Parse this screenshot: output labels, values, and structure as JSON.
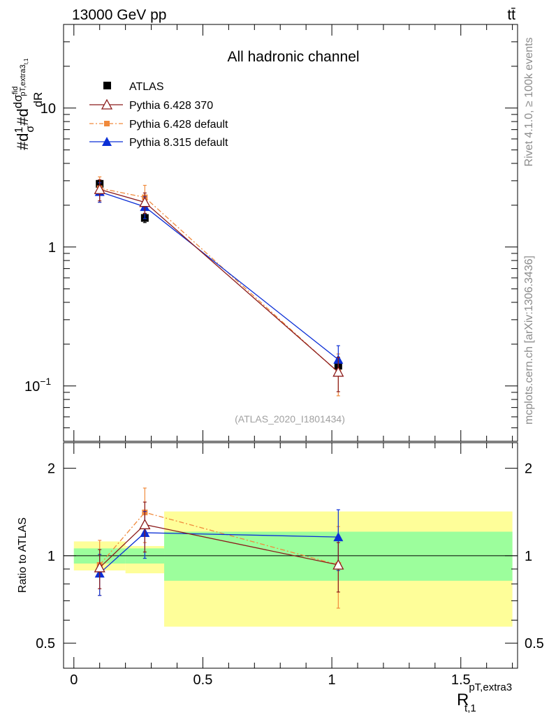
{
  "header": {
    "energy_label": "13000 GeV pp",
    "process_label": "tt̄"
  },
  "side_texts": {
    "rivet": "Rivet 4.1.0, ≥ 100k events",
    "mcplots": "mcplots.cern.ch [arXiv:1306.3436]"
  },
  "colors": {
    "atlas": "#000000",
    "py6_370": "#8b1a1a",
    "py6_default": "#f08a3c",
    "py8_default": "#0b2fd6",
    "band_inner": "#9cfe9c",
    "band_outer": "#fefe99"
  },
  "chart_data": [
    {
      "panel": "main",
      "type": "line",
      "title": "All hadronic channel",
      "reference_id": "(ATLAS_2020_I1801434)",
      "yscale": "log",
      "ylim": [
        0.04,
        40
      ],
      "xlim": [
        -0.04,
        1.72
      ],
      "ylabel_main": "#d",
      "ylabel_frac": "1/σ",
      "ylabel_deriv": "dσ^fid/dR^pT,extra3_t,1",
      "y_major_ticks": [
        {
          "value": 0.1,
          "label": "10",
          "exp": "−1"
        },
        {
          "value": 1,
          "label": "1",
          "exp": ""
        },
        {
          "value": 10,
          "label": "10",
          "exp": ""
        }
      ],
      "x_bins": [
        [
          0,
          0.2
        ],
        [
          0.2,
          0.35
        ],
        [
          0.35,
          1.7
        ]
      ],
      "x": [
        0.1,
        0.275,
        1.025
      ],
      "series": [
        {
          "name": "ATLAS",
          "key": "atlas",
          "marker": "square",
          "values": [
            2.85,
            1.62,
            0.14
          ],
          "err_low": [
            0.15,
            0.12,
            0.012
          ],
          "err_high": [
            0.15,
            0.12,
            0.012
          ],
          "xerr": false
        },
        {
          "name": "Pythia 6.428 370",
          "key": "py6_370",
          "marker": "triangle-open",
          "values": [
            2.6,
            2.1,
            0.126
          ],
          "err_low": [
            0.45,
            0.35,
            0.035
          ],
          "err_high": [
            0.45,
            0.35,
            0.035
          ]
        },
        {
          "name": "Pythia 6.428 default",
          "key": "py6_default",
          "marker": "square-small",
          "values": [
            2.65,
            2.28,
            0.125
          ],
          "err_low": [
            0.55,
            0.45,
            0.04
          ],
          "err_high": [
            0.55,
            0.5,
            0.045
          ]
        },
        {
          "name": "Pythia 8.315 default",
          "key": "py8_default",
          "marker": "triangle",
          "values": [
            2.5,
            1.95,
            0.155
          ],
          "err_low": [
            0.4,
            0.35,
            0.035
          ],
          "err_high": [
            0.4,
            0.35,
            0.04
          ]
        }
      ]
    },
    {
      "panel": "ratio",
      "type": "line",
      "ylabel": "Ratio to ATLAS",
      "xlabel": "R^pT,extra3_t,1",
      "yscale": "log",
      "ylim": [
        0.41,
        2.45
      ],
      "xlim": [
        -0.04,
        1.72
      ],
      "y_major_ticks": [
        {
          "value": 0.5,
          "label": "0.5"
        },
        {
          "value": 1,
          "label": "1"
        },
        {
          "value": 2,
          "label": "2"
        }
      ],
      "x_ticks": [
        {
          "value": 0,
          "label": "0"
        },
        {
          "value": 0.5,
          "label": "0.5"
        },
        {
          "value": 1,
          "label": "1"
        },
        {
          "value": 1.5,
          "label": "1.5"
        }
      ],
      "bands": [
        {
          "x0": 0,
          "x1": 0.2,
          "inner": [
            0.94,
            1.06
          ],
          "outer": [
            0.89,
            1.12
          ]
        },
        {
          "x0": 0.2,
          "x1": 0.35,
          "inner": [
            0.94,
            1.06
          ],
          "outer": [
            0.87,
            1.08
          ]
        },
        {
          "x0": 0.35,
          "x1": 1.7,
          "inner": [
            0.82,
            1.21
          ],
          "outer": [
            0.57,
            1.42
          ]
        }
      ],
      "x": [
        0.1,
        0.275,
        1.025
      ],
      "series": [
        {
          "name": "Pythia 6.428 370",
          "key": "py6_370",
          "marker": "triangle-open",
          "values": [
            0.91,
            1.28,
            0.93
          ],
          "err_low": [
            0.14,
            0.25,
            0.18
          ],
          "err_high": [
            0.14,
            0.25,
            0.18
          ]
        },
        {
          "name": "Pythia 6.428 default",
          "key": "py6_default",
          "marker": "square-small",
          "values": [
            0.93,
            1.41,
            0.93
          ],
          "err_low": [
            0.2,
            0.3,
            0.27
          ],
          "err_high": [
            0.2,
            0.3,
            0.33
          ]
        },
        {
          "name": "Pythia 8.315 default",
          "key": "py8_default",
          "marker": "triangle",
          "values": [
            0.87,
            1.2,
            1.16
          ],
          "err_low": [
            0.14,
            0.22,
            0.27
          ],
          "err_high": [
            0.14,
            0.22,
            0.28
          ]
        }
      ]
    }
  ]
}
